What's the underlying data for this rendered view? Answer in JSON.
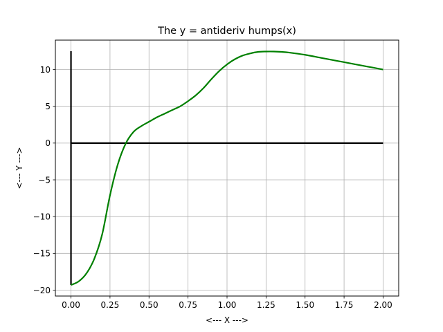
{
  "chart_data": {
    "type": "line",
    "title": "The y = antideriv humps(x)",
    "xlabel": "<--- X --->",
    "ylabel": "<--- Y --->",
    "xlim": [
      -0.1,
      2.1
    ],
    "ylim": [
      -20.8,
      14.0
    ],
    "xticks": [
      0.0,
      0.25,
      0.5,
      0.75,
      1.0,
      1.25,
      1.5,
      1.75,
      2.0
    ],
    "xtick_labels": [
      "0.00",
      "0.25",
      "0.50",
      "0.75",
      "1.00",
      "1.25",
      "1.50",
      "1.75",
      "2.00"
    ],
    "yticks": [
      -20,
      -15,
      -10,
      -5,
      0,
      5,
      10
    ],
    "ytick_labels": [
      "−20",
      "−15",
      "−10",
      "−5",
      "0",
      "5",
      "10"
    ],
    "grid": true,
    "series": [
      {
        "color": "#008000",
        "x": [
          0.0,
          0.05,
          0.1,
          0.15,
          0.2,
          0.25,
          0.3,
          0.35,
          0.4,
          0.45,
          0.5,
          0.55,
          0.6,
          0.65,
          0.7,
          0.75,
          0.8,
          0.85,
          0.9,
          0.95,
          1.0,
          1.05,
          1.1,
          1.15,
          1.2,
          1.25,
          1.3,
          1.35,
          1.4,
          1.5,
          1.6,
          1.7,
          1.8,
          1.9,
          2.0
        ],
        "y": [
          -19.3,
          -18.8,
          -17.7,
          -15.7,
          -12.4,
          -7.1,
          -2.9,
          -0.1,
          1.5,
          2.3,
          2.9,
          3.5,
          4.0,
          4.5,
          5.0,
          5.7,
          6.5,
          7.5,
          8.7,
          9.8,
          10.7,
          11.4,
          11.9,
          12.2,
          12.4,
          12.45,
          12.45,
          12.4,
          12.3,
          12.0,
          11.6,
          11.2,
          10.8,
          10.4,
          10.0
        ]
      },
      {
        "color": "#000000",
        "x": [
          0.0,
          2.0
        ],
        "y": [
          0.0,
          0.0
        ]
      },
      {
        "color": "#000000",
        "x": [
          0.0,
          0.0
        ],
        "y": [
          -19.3,
          12.5
        ]
      }
    ]
  }
}
